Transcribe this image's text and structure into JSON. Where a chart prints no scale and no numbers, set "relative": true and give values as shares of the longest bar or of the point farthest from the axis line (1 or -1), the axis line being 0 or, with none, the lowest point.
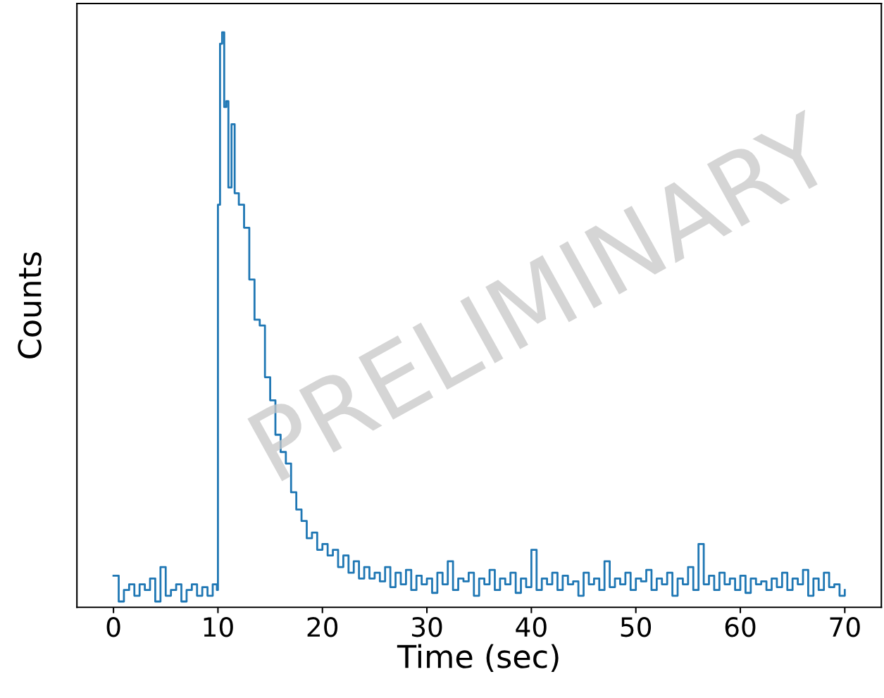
{
  "chart_data": {
    "type": "step",
    "relative": true,
    "xlabel": "Time (sec)",
    "ylabel": "Counts",
    "xlim": [
      -3.5,
      73.5
    ],
    "xticks": [
      0,
      10,
      20,
      30,
      40,
      50,
      60,
      70
    ],
    "annotations": [
      "PRELIMINARY"
    ],
    "series": [
      {
        "color": "#1f77b4",
        "x": [
          0,
          0.5,
          1,
          1.5,
          2,
          2.5,
          3,
          3.5,
          4,
          4.5,
          5,
          5.5,
          6,
          6.5,
          7,
          7.5,
          8,
          8.5,
          9,
          9.5,
          9.9,
          10.0,
          10.2,
          10.4,
          10.6,
          10.8,
          11.0,
          11.3,
          11.6,
          12.0,
          12.5,
          13.0,
          13.5,
          14.0,
          14.5,
          15.0,
          15.5,
          16.0,
          16.5,
          17.0,
          17.5,
          18.0,
          18.5,
          19.0,
          19.5,
          20.0,
          20.5,
          21.0,
          21.5,
          22.0,
          22.5,
          23.0,
          23.5,
          24.0,
          24.5,
          25.0,
          25.5,
          26,
          26.5,
          27,
          27.5,
          28,
          28.5,
          29,
          29.5,
          30,
          30.5,
          31,
          31.5,
          32,
          32.5,
          33,
          33.5,
          34,
          34.5,
          35,
          35.5,
          36,
          36.5,
          37,
          37.5,
          38,
          38.5,
          39,
          39.5,
          40,
          40.5,
          41,
          41.5,
          42,
          42.5,
          43,
          43.5,
          44,
          44.5,
          45,
          45.5,
          46,
          46.5,
          47,
          47.5,
          48,
          48.5,
          49,
          49.5,
          50,
          50.5,
          51,
          51.5,
          52,
          52.5,
          53,
          53.5,
          54,
          54.5,
          55,
          55.5,
          56,
          56.5,
          57,
          57.5,
          58,
          58.5,
          59,
          59.5,
          60,
          60.5,
          61,
          61.5,
          62,
          62.5,
          63,
          63.5,
          64,
          64.5,
          65,
          65.5,
          66,
          66.5,
          67,
          67.5,
          68,
          68.5,
          69,
          69.5,
          70
        ],
        "values": [
          0.055,
          0.01,
          0.03,
          0.04,
          0.02,
          0.04,
          0.03,
          0.05,
          0.01,
          0.07,
          0.02,
          0.03,
          0.04,
          0.01,
          0.03,
          0.04,
          0.02,
          0.035,
          0.02,
          0.04,
          0.03,
          0.7,
          0.98,
          1.0,
          0.87,
          0.88,
          0.73,
          0.84,
          0.72,
          0.7,
          0.66,
          0.57,
          0.5,
          0.49,
          0.4,
          0.36,
          0.3,
          0.27,
          0.25,
          0.2,
          0.17,
          0.15,
          0.12,
          0.13,
          0.1,
          0.11,
          0.09,
          0.1,
          0.07,
          0.09,
          0.06,
          0.08,
          0.05,
          0.07,
          0.05,
          0.06,
          0.045,
          0.07,
          0.035,
          0.06,
          0.04,
          0.065,
          0.03,
          0.055,
          0.04,
          0.05,
          0.025,
          0.06,
          0.04,
          0.08,
          0.03,
          0.05,
          0.045,
          0.06,
          0.02,
          0.05,
          0.04,
          0.065,
          0.03,
          0.05,
          0.04,
          0.06,
          0.025,
          0.05,
          0.035,
          0.1,
          0.03,
          0.05,
          0.04,
          0.06,
          0.03,
          0.055,
          0.04,
          0.045,
          0.02,
          0.06,
          0.04,
          0.05,
          0.03,
          0.08,
          0.035,
          0.05,
          0.04,
          0.06,
          0.03,
          0.05,
          0.045,
          0.065,
          0.03,
          0.05,
          0.04,
          0.06,
          0.02,
          0.05,
          0.04,
          0.07,
          0.03,
          0.11,
          0.04,
          0.055,
          0.03,
          0.06,
          0.04,
          0.05,
          0.03,
          0.055,
          0.025,
          0.05,
          0.04,
          0.045,
          0.03,
          0.05,
          0.035,
          0.06,
          0.03,
          0.05,
          0.04,
          0.065,
          0.02,
          0.05,
          0.03,
          0.06,
          0.035,
          0.04,
          0.02,
          0.03
        ]
      }
    ]
  }
}
